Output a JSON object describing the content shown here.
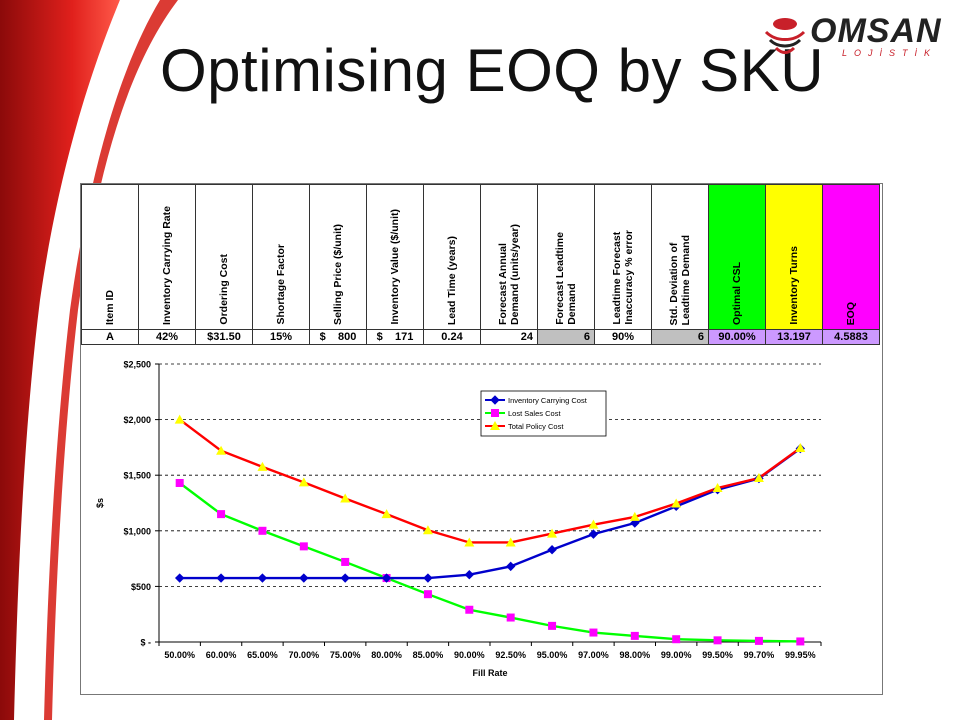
{
  "slide": {
    "title": "Optimising EOQ by SKU"
  },
  "logo": {
    "name": "OMSAN",
    "sub": "LOJİSTİK",
    "badge": "OMSAN"
  },
  "table": {
    "headers": [
      "Item ID",
      "Inventory Carrying Rate",
      "Ordering Cost",
      "Shortage Factor",
      "Selling Price ($/unit)",
      "Inventory Value ($/unit)",
      "Lead Time (years)",
      "Forecast Annual\nDemand (units/year)",
      "Forecast Leadtime\nDemand",
      "Leadtime Forecast\nInaccuracy % error",
      "Std. Deviation of\nLeadtime Demand",
      "Optimal CSL",
      "Inventory Turns",
      "EOQ"
    ],
    "values": [
      "A",
      "42%",
      "$31.50",
      "15%",
      "$    800",
      "$    171",
      "0.24",
      "24",
      "6",
      "90%",
      "6",
      "90.00%",
      "13.197",
      "4.5883"
    ]
  },
  "chart_data": {
    "type": "line",
    "categories": [
      "50.00%",
      "60.00%",
      "65.00%",
      "70.00%",
      "75.00%",
      "80.00%",
      "85.00%",
      "90.00%",
      "92.50%",
      "95.00%",
      "97.00%",
      "98.00%",
      "99.00%",
      "99.50%",
      "99.70%",
      "99.95%"
    ],
    "series": [
      {
        "name": "Inventory Carrying Cost",
        "color": "#0000cc",
        "marker": "diamond",
        "values": [
          575,
          575,
          575,
          575,
          575,
          575,
          575,
          605,
          680,
          830,
          970,
          1070,
          1220,
          1370,
          1470,
          1740
        ]
      },
      {
        "name": "Lost Sales Cost",
        "color": "#00ff00",
        "marker": "square",
        "marker_color": "#ff00ff",
        "values": [
          1430,
          1150,
          1000,
          860,
          720,
          575,
          430,
          290,
          220,
          145,
          85,
          55,
          25,
          15,
          10,
          5
        ]
      },
      {
        "name": "Total Policy Cost",
        "color": "#ff0000",
        "marker": "triangle",
        "marker_color": "#ffff00",
        "values": [
          2000,
          1720,
          1575,
          1435,
          1290,
          1150,
          1005,
          895,
          895,
          975,
          1055,
          1125,
          1245,
          1385,
          1475,
          1745
        ]
      }
    ],
    "title": "",
    "xlabel": "Fill Rate",
    "ylabel": "$s",
    "ylim": [
      0,
      2500
    ],
    "yticks": [
      0,
      500,
      1000,
      1500,
      2000,
      2500
    ],
    "ytick_labels": [
      "$ -",
      "$500",
      "$1,000",
      "$1,500",
      "$2,000",
      "$2,500"
    ],
    "grid": "horizontal-dashed",
    "legend": "top-center"
  }
}
